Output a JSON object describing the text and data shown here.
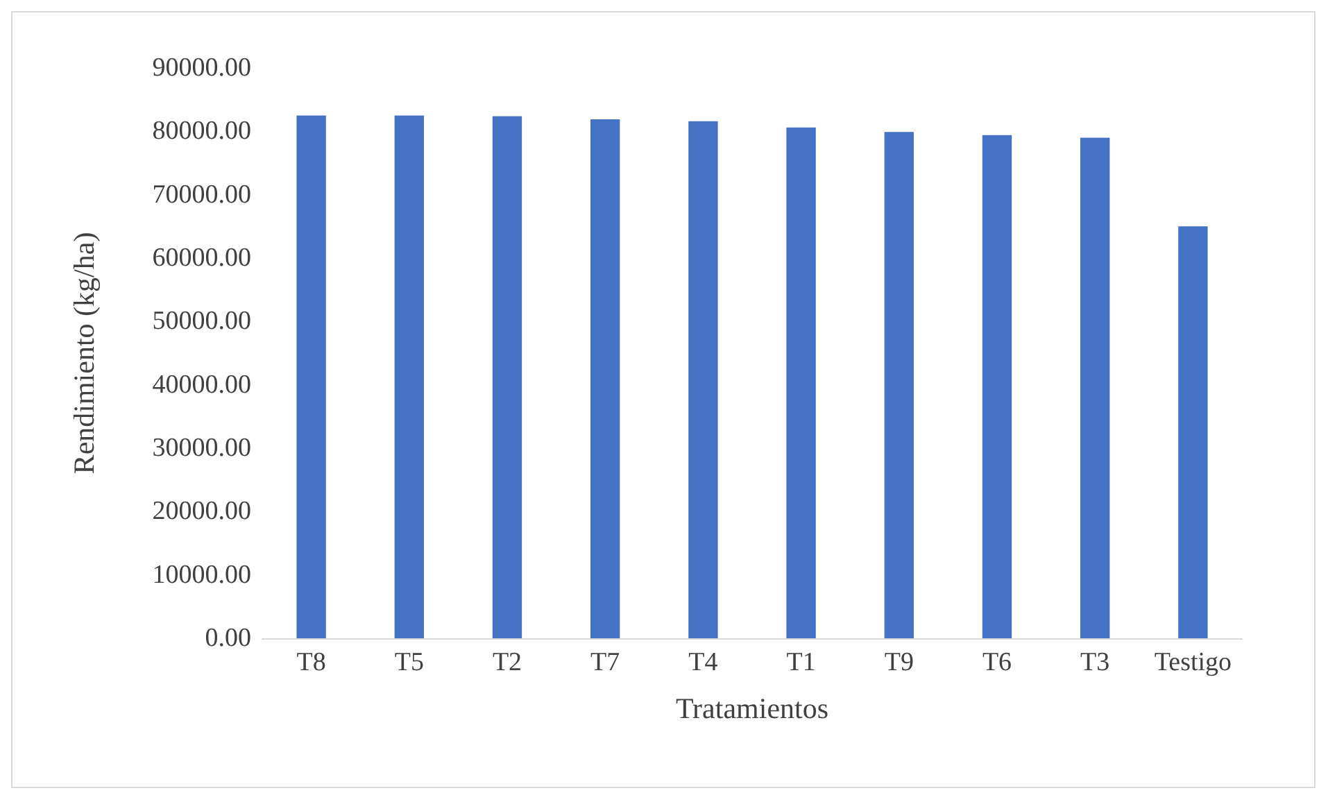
{
  "chart_data": {
    "type": "bar",
    "xlabel": "Tratamientos",
    "ylabel": "Rendimiento (kg/ha)",
    "categories": [
      "T8",
      "T5",
      "T2",
      "T7",
      "T4",
      "T1",
      "T9",
      "T6",
      "T3",
      "Testigo"
    ],
    "values": [
      82500,
      82500,
      82400,
      81900,
      81600,
      80600,
      79900,
      79400,
      79000,
      65000
    ],
    "color": "#4472c4",
    "ylim": [
      0,
      90000
    ],
    "yticks": [
      {
        "value": 0,
        "label": "0.00"
      },
      {
        "value": 10000,
        "label": "10000.00"
      },
      {
        "value": 20000,
        "label": "20000.00"
      },
      {
        "value": 30000,
        "label": "30000.00"
      },
      {
        "value": 40000,
        "label": "40000.00"
      },
      {
        "value": 50000,
        "label": "50000.00"
      },
      {
        "value": 60000,
        "label": "60000.00"
      },
      {
        "value": 70000,
        "label": "70000.00"
      },
      {
        "value": 80000,
        "label": "80000.00"
      },
      {
        "value": 90000,
        "label": "90000.00"
      }
    ],
    "grid": false
  }
}
